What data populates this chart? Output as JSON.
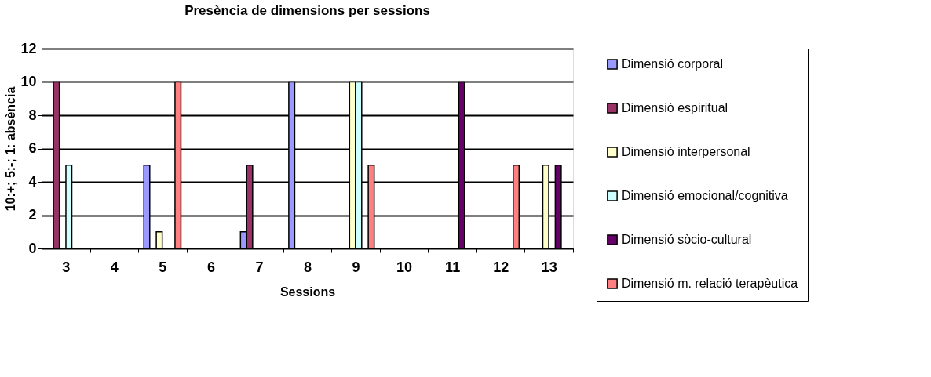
{
  "chart_data": {
    "type": "bar",
    "title": "Presència de dimensions per sessions",
    "xlabel": "Sessions",
    "ylabel": "10:+; 5:-; 1: absència",
    "categories": [
      "3",
      "4",
      "5",
      "6",
      "7",
      "8",
      "9",
      "10",
      "11",
      "12",
      "13"
    ],
    "series": [
      {
        "name": "Dimensió corporal",
        "color": "#9999ff",
        "values": [
          null,
          null,
          5,
          null,
          1,
          10,
          null,
          null,
          null,
          null,
          null
        ]
      },
      {
        "name": "Dimensió espiritual",
        "color": "#993366",
        "values": [
          10,
          null,
          null,
          null,
          5,
          null,
          null,
          null,
          null,
          null,
          null
        ]
      },
      {
        "name": "Dimensió interpersonal",
        "color": "#ffffcc",
        "values": [
          null,
          null,
          1,
          null,
          null,
          null,
          10,
          null,
          null,
          null,
          5
        ]
      },
      {
        "name": "Dimensió emocional/cognitiva",
        "color": "#ccffff",
        "values": [
          5,
          null,
          null,
          null,
          null,
          null,
          10,
          null,
          null,
          null,
          null
        ]
      },
      {
        "name": "Dimensió sòcio-cultural",
        "color": "#660066",
        "values": [
          null,
          null,
          null,
          null,
          null,
          null,
          null,
          null,
          10,
          null,
          5
        ]
      },
      {
        "name": "Dimensió m. relació terapèutica",
        "color": "#ff8080",
        "values": [
          null,
          null,
          10,
          null,
          null,
          null,
          5,
          null,
          null,
          5,
          null
        ]
      }
    ],
    "ylim": [
      0,
      12
    ],
    "yticks": [
      0,
      2,
      4,
      6,
      8,
      10,
      12
    ],
    "grid": "y",
    "legend": "right"
  }
}
